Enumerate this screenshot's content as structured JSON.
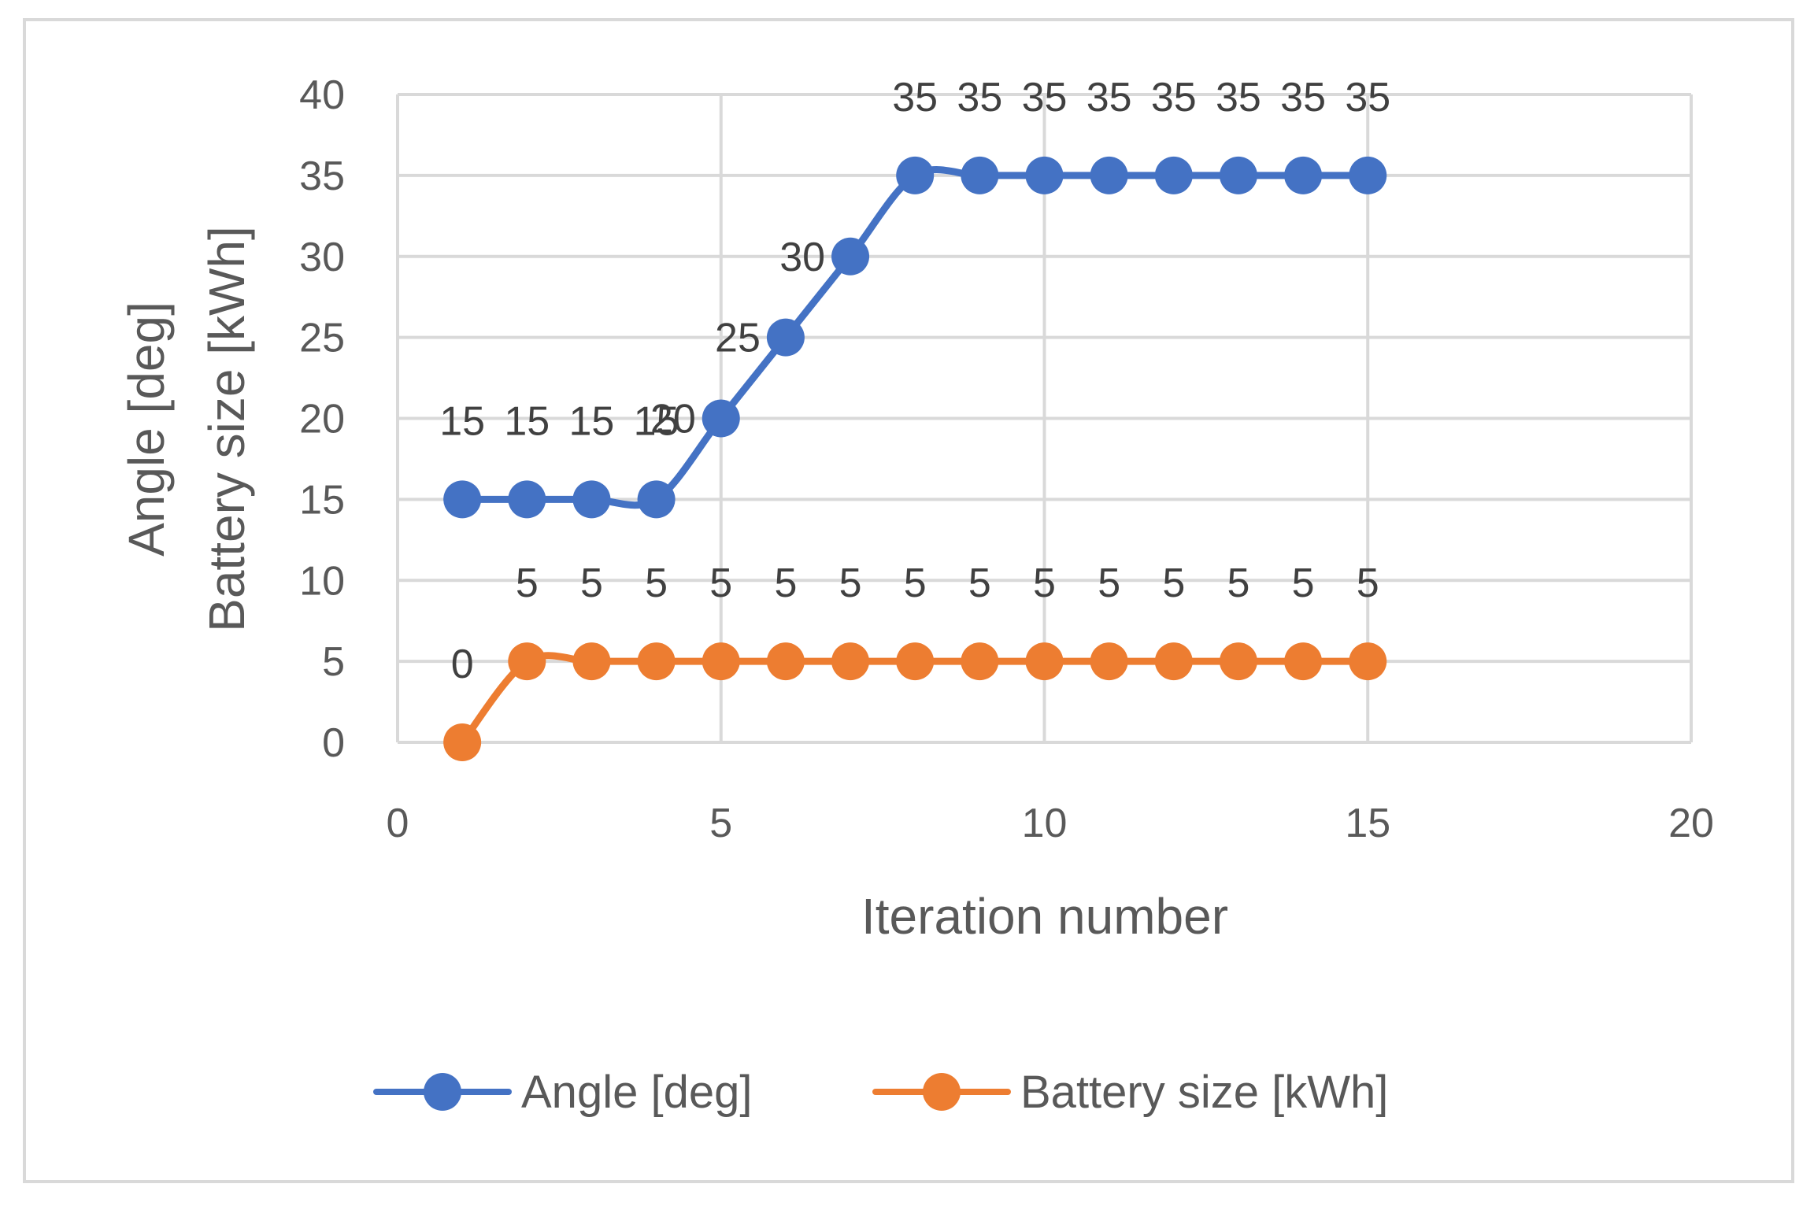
{
  "chart_data": {
    "type": "line",
    "xlabel": "Iteration number",
    "ylabel_lines": [
      "Angle [deg]",
      "Battery size [kWh]"
    ],
    "xlim": [
      0,
      20
    ],
    "ylim": [
      0,
      40
    ],
    "x_ticks": [
      0,
      5,
      10,
      15,
      20
    ],
    "y_ticks": [
      0,
      5,
      10,
      15,
      20,
      25,
      30,
      35,
      40
    ],
    "grid": true,
    "legend_position": "bottom",
    "x": [
      1,
      2,
      3,
      4,
      5,
      6,
      7,
      8,
      9,
      10,
      11,
      12,
      13,
      14,
      15
    ],
    "series": [
      {
        "name": "Angle [deg]",
        "color": "#4472c4",
        "values": [
          15,
          15,
          15,
          15,
          20,
          25,
          30,
          35,
          35,
          35,
          35,
          35,
          35,
          35,
          35
        ],
        "labels": [
          "15",
          "15",
          "15",
          "15",
          "20",
          "25",
          "30",
          "35",
          "35",
          "35",
          "35",
          "35",
          "35",
          "35",
          "35"
        ]
      },
      {
        "name": "Battery size [kWh]",
        "color": "#ed7d31",
        "values": [
          0,
          5,
          5,
          5,
          5,
          5,
          5,
          5,
          5,
          5,
          5,
          5,
          5,
          5,
          5
        ],
        "labels": [
          "0",
          "5",
          "5",
          "5",
          "5",
          "5",
          "5",
          "5",
          "5",
          "5",
          "5",
          "5",
          "5",
          "5",
          "5"
        ]
      }
    ]
  }
}
